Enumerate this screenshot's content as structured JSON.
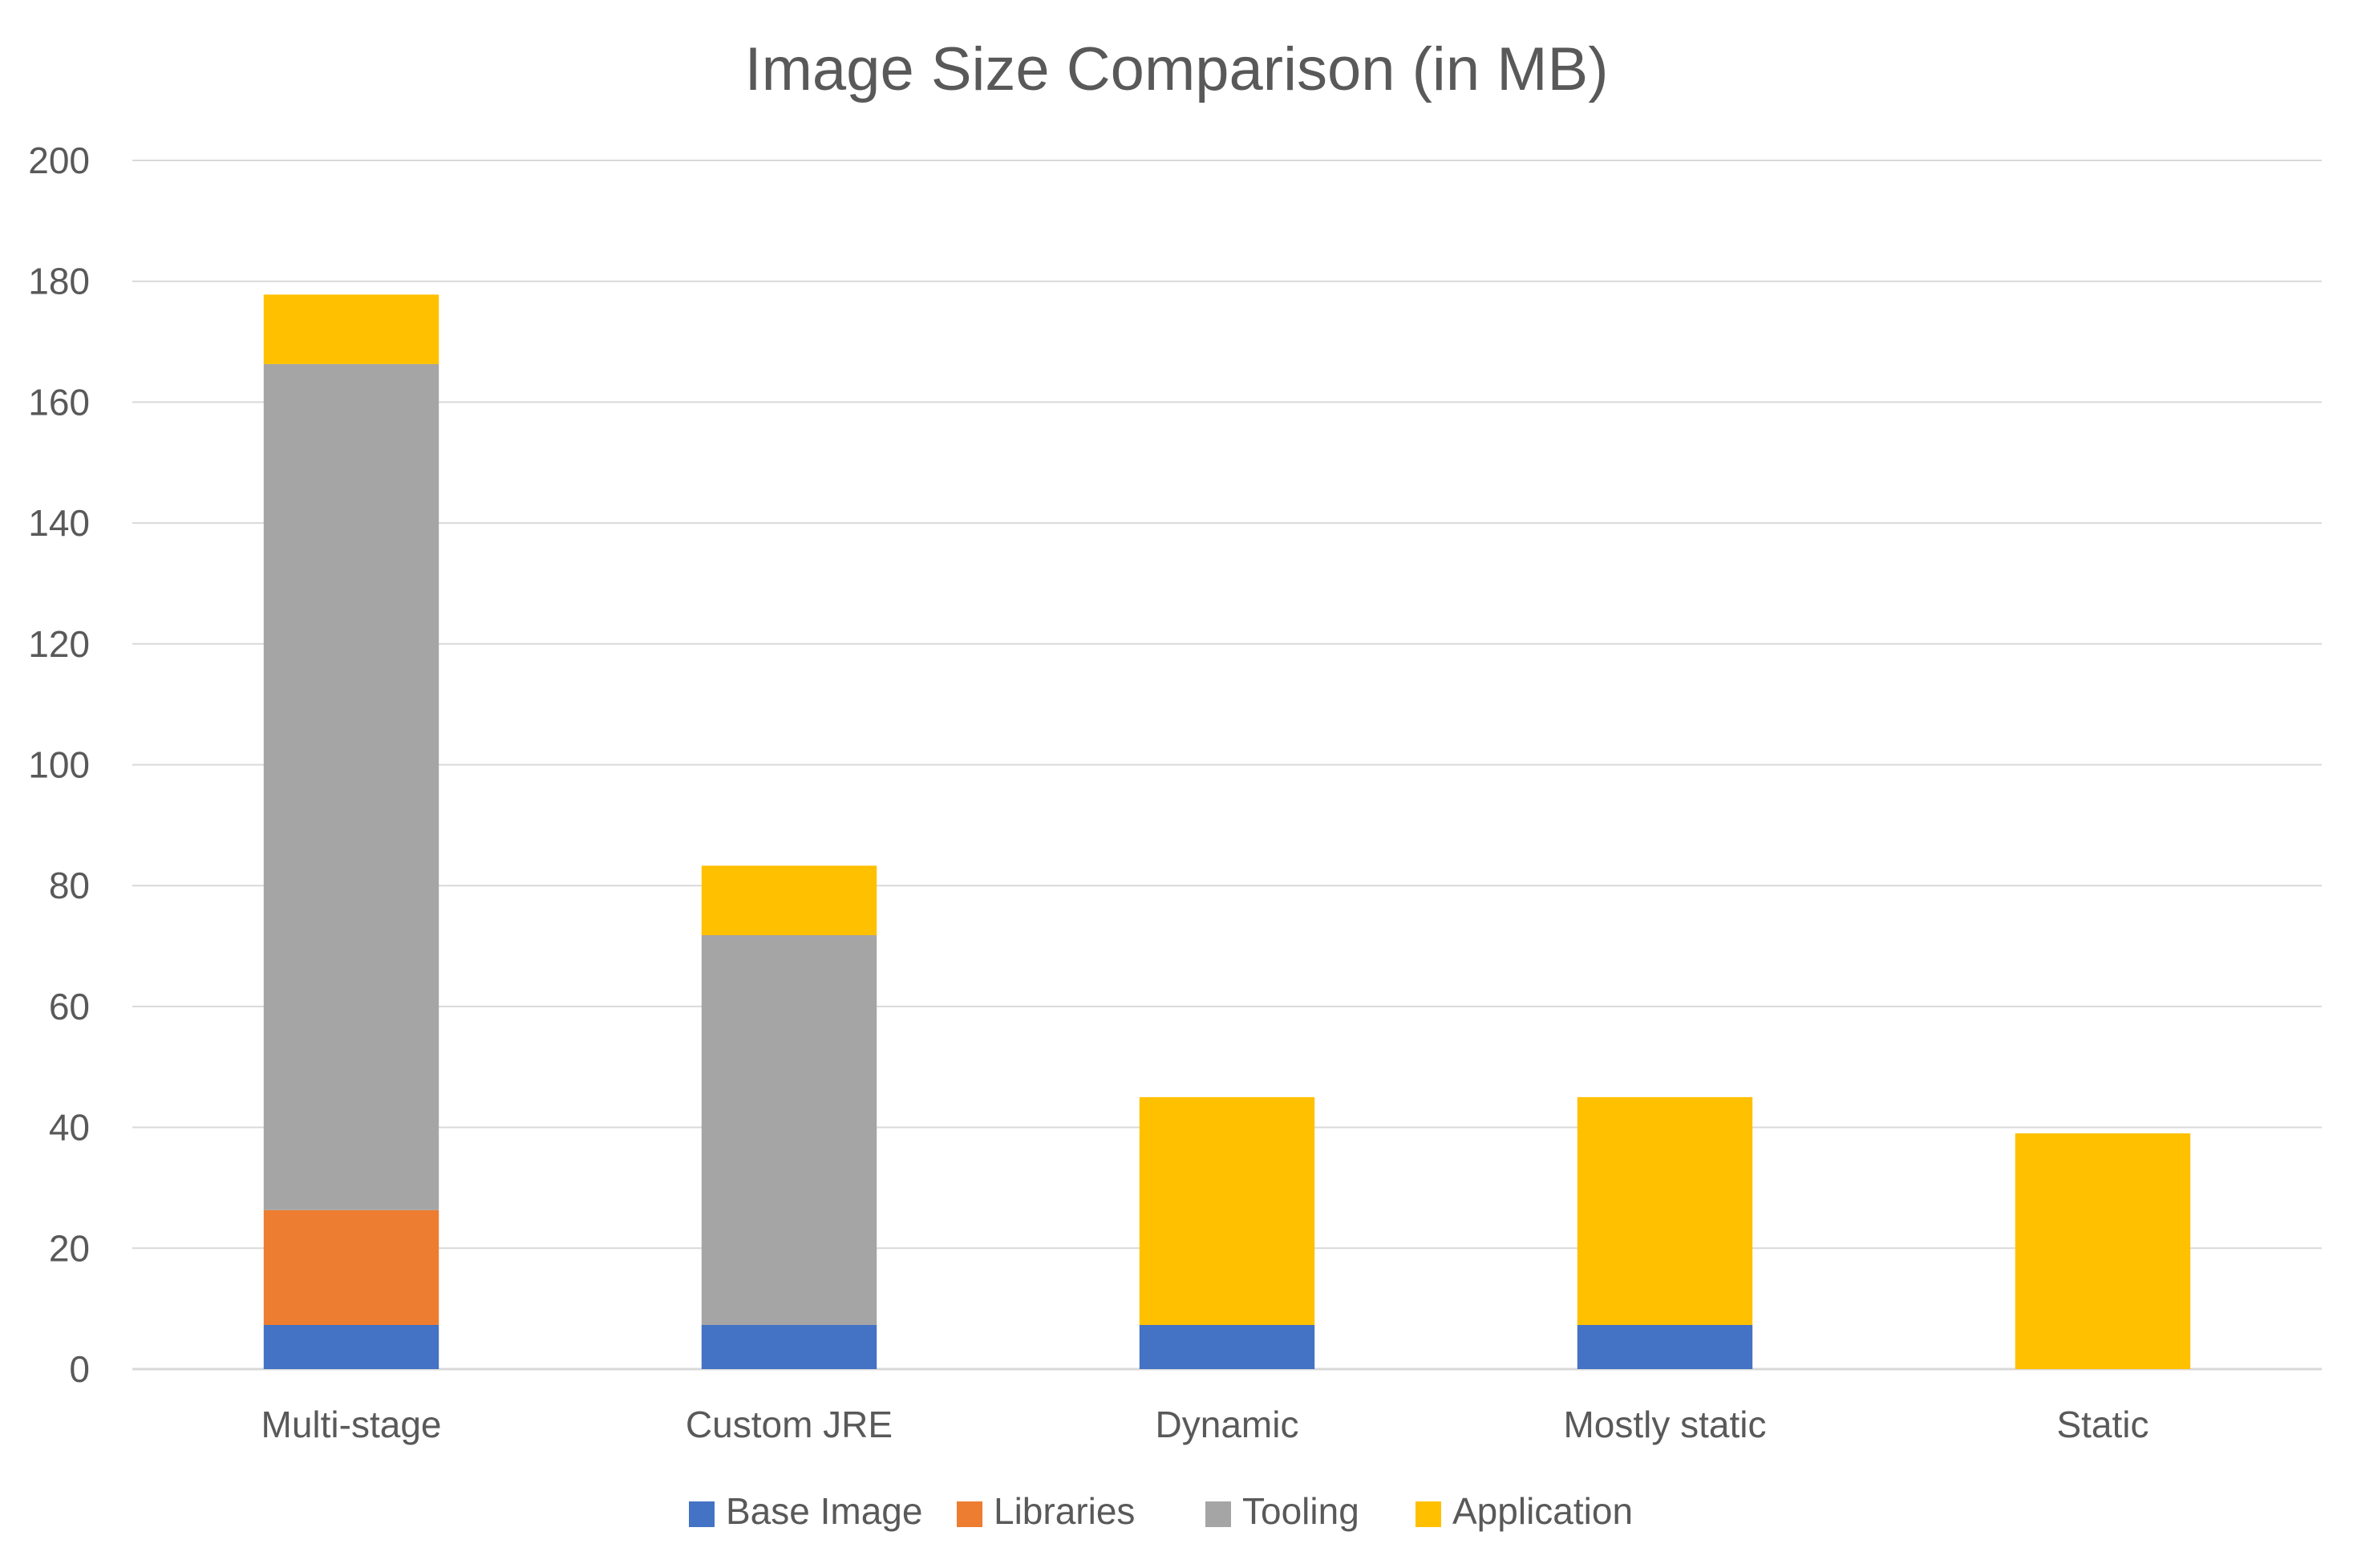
{
  "chart_data": {
    "type": "bar",
    "stacked": true,
    "title": "Image Size Comparison (in MB)",
    "xlabel": "",
    "ylabel": "",
    "ylim": [
      0,
      200
    ],
    "yticks": [
      0,
      20,
      40,
      60,
      80,
      100,
      120,
      140,
      160,
      180,
      200
    ],
    "grid": true,
    "legend_position": "bottom",
    "categories": [
      "Multi-stage",
      "Custom JRE",
      "Dynamic",
      "Mostly static",
      "Static"
    ],
    "series": [
      {
        "name": "Base Image",
        "color": "#4472C4",
        "values": [
          7.3,
          7.3,
          7.3,
          7.3,
          0
        ]
      },
      {
        "name": "Libraries",
        "color": "#ED7D31",
        "values": [
          19,
          0,
          0,
          0,
          0
        ]
      },
      {
        "name": "Tooling",
        "color": "#A5A5A5",
        "values": [
          140,
          64.5,
          0,
          0,
          0
        ]
      },
      {
        "name": "Application",
        "color": "#FFC000",
        "values": [
          11.5,
          11.5,
          37.7,
          37.7,
          39
        ]
      }
    ]
  }
}
